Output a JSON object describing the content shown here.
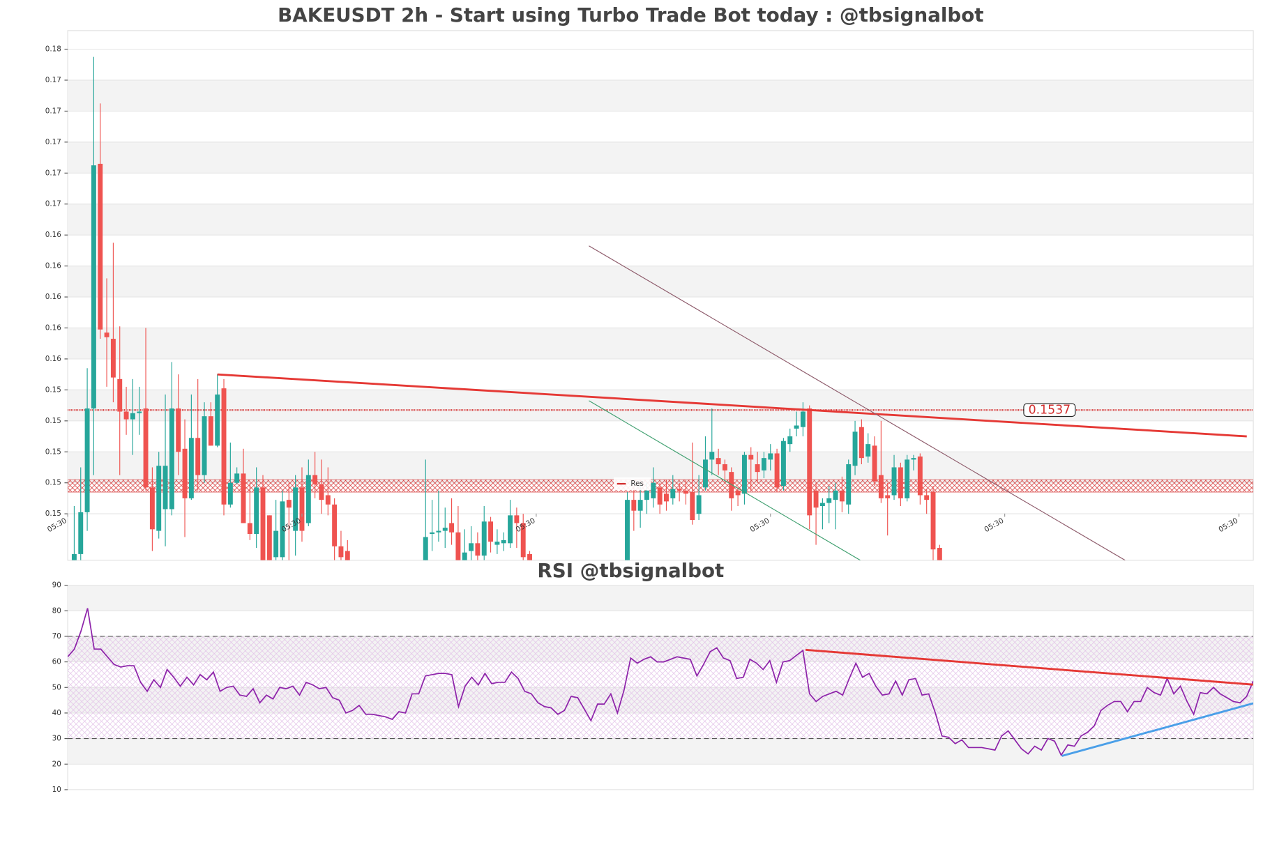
{
  "chart_data": [
    {
      "type": "candlestick",
      "title": "BAKEUSDT 2h - Start using Turbo Trade Bot today : @tbsignalbot",
      "up_color": "#26a69a",
      "down_color": "#ef5350",
      "xlim": [
        2,
        184.2
      ],
      "ylim": [
        0.144,
        0.1782
      ],
      "xticks": [
        {
          "value": 2,
          "label": "05:30"
        },
        {
          "value": 38,
          "label": "05:30"
        },
        {
          "value": 74,
          "label": "05:30"
        },
        {
          "value": 110,
          "label": "05:30"
        },
        {
          "value": 146,
          "label": "05:30"
        },
        {
          "value": 182,
          "label": "05:30"
        }
      ],
      "yticks": [
        {
          "value": 0.147,
          "label": "0.15"
        },
        {
          "value": 0.149,
          "label": "0.15"
        },
        {
          "value": 0.151,
          "label": "0.15"
        },
        {
          "value": 0.153,
          "label": "0.15"
        },
        {
          "value": 0.155,
          "label": "0.15"
        },
        {
          "value": 0.157,
          "label": "0.16"
        },
        {
          "value": 0.159,
          "label": "0.16"
        },
        {
          "value": 0.161,
          "label": "0.16"
        },
        {
          "value": 0.163,
          "label": "0.16"
        },
        {
          "value": 0.165,
          "label": "0.16"
        },
        {
          "value": 0.167,
          "label": "0.17"
        },
        {
          "value": 0.169,
          "label": "0.17"
        },
        {
          "value": 0.171,
          "label": "0.17"
        },
        {
          "value": 0.173,
          "label": "0.17"
        },
        {
          "value": 0.175,
          "label": "0.17"
        },
        {
          "value": 0.177,
          "label": "0.18"
        }
      ],
      "x": [
        3,
        4,
        5,
        6,
        7,
        8,
        9,
        10,
        11,
        12,
        13,
        14,
        15,
        16,
        17,
        18,
        19,
        20,
        21,
        22,
        23,
        24,
        25,
        26,
        27,
        28,
        29,
        30,
        31,
        32,
        33,
        34,
        35,
        36,
        37,
        38,
        39,
        40,
        41,
        42,
        43,
        44,
        45,
        57,
        58,
        59,
        60,
        61,
        62,
        63,
        64,
        65,
        66,
        67,
        68,
        69,
        70,
        71,
        72,
        73,
        88,
        89,
        90,
        91,
        92,
        93,
        94,
        95,
        96,
        97,
        98,
        99,
        100,
        101,
        102,
        103,
        104,
        105,
        106,
        107,
        108,
        109,
        110,
        111,
        112,
        113,
        114,
        115,
        116,
        117,
        118,
        119,
        120,
        121,
        122,
        123,
        124,
        125,
        126,
        127,
        128,
        129,
        130,
        131,
        132,
        133,
        134,
        135,
        136
      ],
      "open": [
        0.144,
        0.1444,
        0.1471,
        0.1538,
        0.1696,
        0.1587,
        0.1583,
        0.1557,
        0.1536,
        0.1531,
        0.1535,
        0.1538,
        0.1487,
        0.1459,
        0.1473,
        0.1473,
        0.1538,
        0.1512,
        0.148,
        0.1519,
        0.1495,
        0.1533,
        0.1514,
        0.1551,
        0.1476,
        0.149,
        0.1496,
        0.1464,
        0.1457,
        0.1487,
        0.1469,
        0.1442,
        0.1442,
        0.1479,
        0.1459,
        0.1487,
        0.1464,
        0.1495,
        0.1489,
        0.1482,
        0.1476,
        0.1449,
        0.1446,
        0.144,
        0.1457,
        0.1458,
        0.1459,
        0.1464,
        0.1458,
        0.144,
        0.1446,
        0.1451,
        0.1443,
        0.1465,
        0.145,
        0.1451,
        0.1451,
        0.1469,
        0.1464,
        0.1444,
        0.144,
        0.1479,
        0.1472,
        0.1479,
        0.148,
        0.1487,
        0.1483,
        0.148,
        0.1486,
        0.1485,
        0.1484,
        0.147,
        0.1487,
        0.1505,
        0.1506,
        0.1502,
        0.1497,
        0.1485,
        0.1483,
        0.1508,
        0.1502,
        0.1498,
        0.1505,
        0.1509,
        0.1488,
        0.1515,
        0.1525,
        0.1526,
        0.1538,
        0.1485,
        0.1475,
        0.1477,
        0.1479,
        0.1485,
        0.1476,
        0.1501,
        0.1526,
        0.1507,
        0.1514,
        0.1495,
        0.1482,
        0.1482,
        0.15,
        0.148,
        0.1505,
        0.1507,
        0.1482,
        0.1484,
        0.1448
      ],
      "high": [
        0.1475,
        0.15,
        0.1564,
        0.1765,
        0.1735,
        0.1622,
        0.1645,
        0.1591,
        0.1552,
        0.1557,
        0.1552,
        0.159,
        0.15,
        0.151,
        0.1547,
        0.1568,
        0.156,
        0.1531,
        0.1547,
        0.1557,
        0.1542,
        0.1542,
        0.156,
        0.1557,
        0.1516,
        0.15,
        0.1512,
        0.149,
        0.15,
        0.1495,
        0.1469,
        0.1479,
        0.1485,
        0.149,
        0.1495,
        0.15,
        0.1505,
        0.151,
        0.1505,
        0.15,
        0.148,
        0.1459,
        0.1453,
        0.1505,
        0.1479,
        0.1485,
        0.1474,
        0.148,
        0.1475,
        0.146,
        0.1462,
        0.1458,
        0.1475,
        0.1468,
        0.146,
        0.1458,
        0.1479,
        0.1474,
        0.147,
        0.1446,
        0.1484,
        0.1488,
        0.149,
        0.149,
        0.15,
        0.149,
        0.1492,
        0.1495,
        0.149,
        0.1492,
        0.1516,
        0.1495,
        0.152,
        0.1538,
        0.1512,
        0.1505,
        0.15,
        0.1487,
        0.151,
        0.1513,
        0.151,
        0.151,
        0.1515,
        0.1512,
        0.1519,
        0.1525,
        0.1536,
        0.1542,
        0.154,
        0.149,
        0.148,
        0.1488,
        0.149,
        0.1494,
        0.1505,
        0.153,
        0.1531,
        0.1522,
        0.152,
        0.153,
        0.149,
        0.1508,
        0.1503,
        0.1508,
        0.1508,
        0.1509,
        0.1486,
        0.1488,
        0.145
      ],
      "low": [
        0.144,
        0.144,
        0.1459,
        0.1495,
        0.1583,
        0.1552,
        0.1542,
        0.1495,
        0.1521,
        0.1508,
        0.1521,
        0.1485,
        0.1446,
        0.1454,
        0.1449,
        0.1469,
        0.1495,
        0.1455,
        0.1479,
        0.1485,
        0.149,
        0.1514,
        0.1513,
        0.1469,
        0.1474,
        0.1489,
        0.1464,
        0.1453,
        0.1448,
        0.144,
        0.144,
        0.144,
        0.144,
        0.144,
        0.1443,
        0.1452,
        0.1462,
        0.148,
        0.147,
        0.1469,
        0.144,
        0.144,
        0.144,
        0.144,
        0.1446,
        0.1452,
        0.1448,
        0.145,
        0.144,
        0.144,
        0.144,
        0.144,
        0.144,
        0.1445,
        0.1444,
        0.1446,
        0.1448,
        0.1448,
        0.144,
        0.144,
        0.144,
        0.1459,
        0.1461,
        0.147,
        0.1474,
        0.147,
        0.1472,
        0.1476,
        0.1478,
        0.1476,
        0.1463,
        0.1466,
        0.1485,
        0.1495,
        0.1495,
        0.149,
        0.1472,
        0.1475,
        0.1476,
        0.1485,
        0.149,
        0.1493,
        0.1498,
        0.1484,
        0.1485,
        0.151,
        0.152,
        0.152,
        0.146,
        0.145,
        0.146,
        0.1464,
        0.146,
        0.1471,
        0.147,
        0.1495,
        0.1502,
        0.1503,
        0.1488,
        0.1477,
        0.1456,
        0.1479,
        0.1475,
        0.1478,
        0.1498,
        0.1476,
        0.147,
        0.144,
        0.144
      ],
      "close": [
        0.1444,
        0.1471,
        0.1538,
        0.1695,
        0.1589,
        0.1584,
        0.1558,
        0.1536,
        0.1531,
        0.1535,
        0.1536,
        0.1487,
        0.146,
        0.1501,
        0.1501,
        0.1538,
        0.151,
        0.148,
        0.1519,
        0.1495,
        0.1533,
        0.1514,
        0.1547,
        0.1476,
        0.149,
        0.1496,
        0.1464,
        0.1457,
        0.1487,
        0.144,
        0.144,
        0.1459,
        0.1478,
        0.1474,
        0.1487,
        0.1459,
        0.1495,
        0.1489,
        0.1479,
        0.1476,
        0.1449,
        0.1442,
        0.144,
        0.1455,
        0.1458,
        0.1459,
        0.1461,
        0.1458,
        0.144,
        0.1445,
        0.1451,
        0.1443,
        0.1465,
        0.1452,
        0.1452,
        0.1453,
        0.1469,
        0.1464,
        0.1442,
        0.144,
        0.1479,
        0.1472,
        0.1479,
        0.1485,
        0.149,
        0.1476,
        0.1478,
        0.1486,
        0.1485,
        0.1483,
        0.1466,
        0.1482,
        0.1505,
        0.151,
        0.1502,
        0.1498,
        0.148,
        0.1482,
        0.1508,
        0.1505,
        0.1497,
        0.1506,
        0.1509,
        0.1487,
        0.1517,
        0.152,
        0.1527,
        0.1536,
        0.1469,
        0.1474,
        0.1477,
        0.148,
        0.1485,
        0.1478,
        0.1502,
        0.1523,
        0.1506,
        0.1515,
        0.1491,
        0.148,
        0.148,
        0.15,
        0.148,
        0.1505,
        0.1506,
        0.1482,
        0.1479,
        0.1447,
        0.144
      ],
      "resistance": {
        "name": "Res",
        "value": 0.1537,
        "color": "#d32f2f"
      },
      "zone": {
        "low": 0.1484,
        "high": 0.1492,
        "color": "#d32f2f"
      },
      "trendlines": [
        {
          "x": [
            25,
            183.2
          ],
          "y": [
            0.156,
            0.152
          ],
          "color": "#e53935"
        },
        {
          "x": [
            82.1,
            164.5
          ],
          "y": [
            0.1643,
            0.144
          ],
          "color": "#8d5a6a"
        },
        {
          "x": [
            82.1,
            123.8
          ],
          "y": [
            0.1543,
            0.144
          ],
          "color": "#3f9f6f"
        }
      ]
    },
    {
      "type": "line",
      "title": "RSI @tbsignalbot",
      "color": "#8e24aa",
      "xlim": [
        0,
        179
      ],
      "ylim": [
        10,
        90
      ],
      "yticks": [
        10,
        20,
        30,
        40,
        50,
        60,
        70,
        80,
        90
      ],
      "levels": [
        70,
        30
      ],
      "band": [
        30,
        70
      ],
      "values": [
        62,
        65,
        72,
        81,
        65,
        65,
        62,
        59,
        58,
        58.5,
        58.5,
        52,
        48.5,
        53,
        50,
        57,
        54,
        50.5,
        54,
        51,
        55,
        53,
        56,
        48.5,
        50,
        50.5,
        47,
        46.5,
        49.5,
        44,
        47,
        45.5,
        50,
        49.5,
        50.5,
        47,
        52,
        51,
        49.5,
        50,
        46,
        45,
        40,
        41,
        43,
        39.5,
        39.5,
        39,
        38.5,
        37.5,
        40.5,
        40,
        47.5,
        47.5,
        54.5,
        55,
        55.5,
        55.5,
        55,
        42.5,
        50.5,
        54,
        51,
        55.5,
        51.5,
        52,
        52,
        56,
        53.5,
        48.5,
        47.5,
        44,
        42.5,
        42,
        39.5,
        41,
        46.5,
        46,
        41.5,
        37,
        43.5,
        43.5,
        47.5,
        40,
        49,
        61.5,
        59.5,
        61,
        62,
        60,
        60,
        61,
        62,
        61.5,
        61,
        54.5,
        59,
        64,
        65.5,
        61.5,
        60.5,
        53.5,
        54,
        61,
        59.5,
        57,
        60.5,
        52,
        60,
        60.5,
        62.5,
        64.5,
        47.5,
        44.5,
        46.5,
        47.5,
        48.5,
        47,
        53.5,
        59.5,
        54,
        55.5,
        50.5,
        47,
        47.5,
        52.5,
        47,
        53,
        53.5,
        47,
        47.5,
        40,
        31,
        30.5,
        28,
        29.5,
        26.5,
        26.5,
        26.5,
        26,
        25.5,
        31,
        33,
        29.5,
        26,
        24,
        27,
        25.5,
        30,
        29,
        23.5,
        27.5,
        27,
        31,
        32.5,
        35,
        41,
        43,
        44.5,
        44.5,
        40.5,
        44.5,
        44.5,
        50,
        48,
        47,
        53.5,
        47.5,
        50.5,
        44.5,
        39.5,
        48,
        47.5,
        50,
        47.5,
        46,
        44.5,
        44,
        46.5,
        52.5
      ],
      "trendlines": [
        {
          "x": [
            111.4,
            179
          ],
          "y": [
            64.7,
            51.1
          ],
          "color": "#e53935"
        },
        {
          "x": [
            150.1,
            179
          ],
          "y": [
            23.2,
            43.8
          ],
          "color": "#4a9fe8"
        }
      ]
    }
  ]
}
